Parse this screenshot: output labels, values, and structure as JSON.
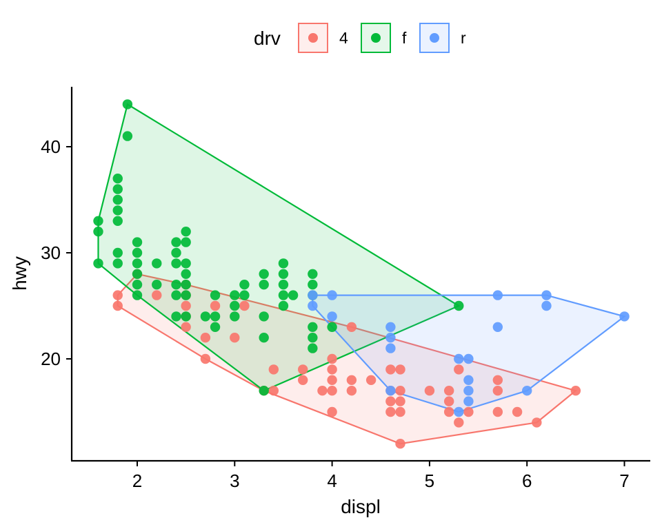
{
  "chart_data": {
    "type": "scatter",
    "title": "",
    "xlabel": "displ",
    "ylabel": "hwy",
    "xlim": [
      1.33,
      7.27
    ],
    "ylim": [
      10.4,
      45.6
    ],
    "x_ticks": [
      2,
      3,
      4,
      5,
      6,
      7
    ],
    "y_ticks": [
      20,
      30,
      40
    ],
    "x_tick_labels": [
      "2",
      "3",
      "4",
      "5",
      "6",
      "7"
    ],
    "y_tick_labels": [
      "20",
      "30",
      "40"
    ],
    "grid": false,
    "legend": {
      "title": "drv",
      "placement": "top",
      "entries": [
        "4",
        "f",
        "r"
      ]
    },
    "overlay": "convex hull per group (filled, semi-transparent)",
    "series": [
      {
        "name": "4",
        "color": "#F8766D",
        "fill_color": "#FEEEED",
        "points": [
          [
            1.8,
            26
          ],
          [
            1.8,
            25
          ],
          [
            2.0,
            28
          ],
          [
            2.2,
            26
          ],
          [
            2.5,
            27
          ],
          [
            2.5,
            26
          ],
          [
            2.5,
            25
          ],
          [
            2.5,
            24
          ],
          [
            2.5,
            23
          ],
          [
            2.7,
            22
          ],
          [
            2.7,
            20
          ],
          [
            2.8,
            25
          ],
          [
            3.0,
            22
          ],
          [
            3.1,
            25
          ],
          [
            3.3,
            17
          ],
          [
            3.4,
            19
          ],
          [
            3.4,
            17
          ],
          [
            3.7,
            19
          ],
          [
            3.7,
            18
          ],
          [
            3.9,
            17
          ],
          [
            4.0,
            20
          ],
          [
            4.0,
            19
          ],
          [
            4.0,
            18
          ],
          [
            4.0,
            17
          ],
          [
            4.0,
            15
          ],
          [
            4.2,
            23
          ],
          [
            4.2,
            18
          ],
          [
            4.2,
            17
          ],
          [
            4.4,
            18
          ],
          [
            4.6,
            19
          ],
          [
            4.6,
            17
          ],
          [
            4.6,
            16
          ],
          [
            4.6,
            15
          ],
          [
            4.7,
            19
          ],
          [
            4.7,
            17
          ],
          [
            4.7,
            16
          ],
          [
            4.7,
            15
          ],
          [
            4.7,
            12
          ],
          [
            5.0,
            17
          ],
          [
            5.2,
            17
          ],
          [
            5.2,
            16
          ],
          [
            5.2,
            15
          ],
          [
            5.3,
            19
          ],
          [
            5.3,
            14
          ],
          [
            5.4,
            15
          ],
          [
            5.7,
            18
          ],
          [
            5.7,
            17
          ],
          [
            5.7,
            15
          ],
          [
            5.9,
            15
          ],
          [
            6.1,
            14
          ],
          [
            6.5,
            17
          ]
        ]
      },
      {
        "name": "f",
        "color": "#00BA38",
        "fill_color": "#E5F7EA",
        "points": [
          [
            1.6,
            33
          ],
          [
            1.6,
            32
          ],
          [
            1.6,
            29
          ],
          [
            1.8,
            37
          ],
          [
            1.8,
            36
          ],
          [
            1.8,
            35
          ],
          [
            1.8,
            34
          ],
          [
            1.8,
            33
          ],
          [
            1.8,
            30
          ],
          [
            1.8,
            29
          ],
          [
            1.9,
            44
          ],
          [
            1.9,
            41
          ],
          [
            2.0,
            31
          ],
          [
            2.0,
            30
          ],
          [
            2.0,
            29
          ],
          [
            2.0,
            28
          ],
          [
            2.0,
            27
          ],
          [
            2.0,
            26
          ],
          [
            2.2,
            29
          ],
          [
            2.2,
            27
          ],
          [
            2.4,
            31
          ],
          [
            2.4,
            30
          ],
          [
            2.4,
            29
          ],
          [
            2.4,
            27
          ],
          [
            2.4,
            26
          ],
          [
            2.4,
            24
          ],
          [
            2.5,
            32
          ],
          [
            2.5,
            31
          ],
          [
            2.5,
            29
          ],
          [
            2.5,
            28
          ],
          [
            2.5,
            27
          ],
          [
            2.5,
            26
          ],
          [
            2.5,
            24
          ],
          [
            2.7,
            24
          ],
          [
            2.8,
            26
          ],
          [
            2.8,
            24
          ],
          [
            2.8,
            23
          ],
          [
            3.0,
            26
          ],
          [
            3.0,
            25
          ],
          [
            3.0,
            24
          ],
          [
            3.1,
            27
          ],
          [
            3.1,
            26
          ],
          [
            3.3,
            28
          ],
          [
            3.3,
            27
          ],
          [
            3.3,
            24
          ],
          [
            3.3,
            22
          ],
          [
            3.3,
            17
          ],
          [
            3.5,
            29
          ],
          [
            3.5,
            28
          ],
          [
            3.5,
            27
          ],
          [
            3.5,
            26
          ],
          [
            3.5,
            25
          ],
          [
            3.6,
            26
          ],
          [
            3.8,
            28
          ],
          [
            3.8,
            27
          ],
          [
            3.8,
            26
          ],
          [
            3.8,
            23
          ],
          [
            3.8,
            22
          ],
          [
            3.8,
            21
          ],
          [
            4.0,
            23
          ],
          [
            5.3,
            25
          ]
        ]
      },
      {
        "name": "r",
        "color": "#619CFF",
        "fill_color": "#EBF2FF",
        "points": [
          [
            3.8,
            26
          ],
          [
            3.8,
            25
          ],
          [
            4.0,
            26
          ],
          [
            4.0,
            24
          ],
          [
            4.6,
            23
          ],
          [
            4.6,
            22
          ],
          [
            4.6,
            21
          ],
          [
            4.6,
            17
          ],
          [
            5.3,
            20
          ],
          [
            5.3,
            15
          ],
          [
            5.4,
            20
          ],
          [
            5.4,
            18
          ],
          [
            5.4,
            17
          ],
          [
            5.4,
            16
          ],
          [
            5.7,
            26
          ],
          [
            5.7,
            23
          ],
          [
            6.0,
            17
          ],
          [
            6.2,
            26
          ],
          [
            6.2,
            25
          ],
          [
            7.0,
            24
          ]
        ]
      }
    ]
  }
}
